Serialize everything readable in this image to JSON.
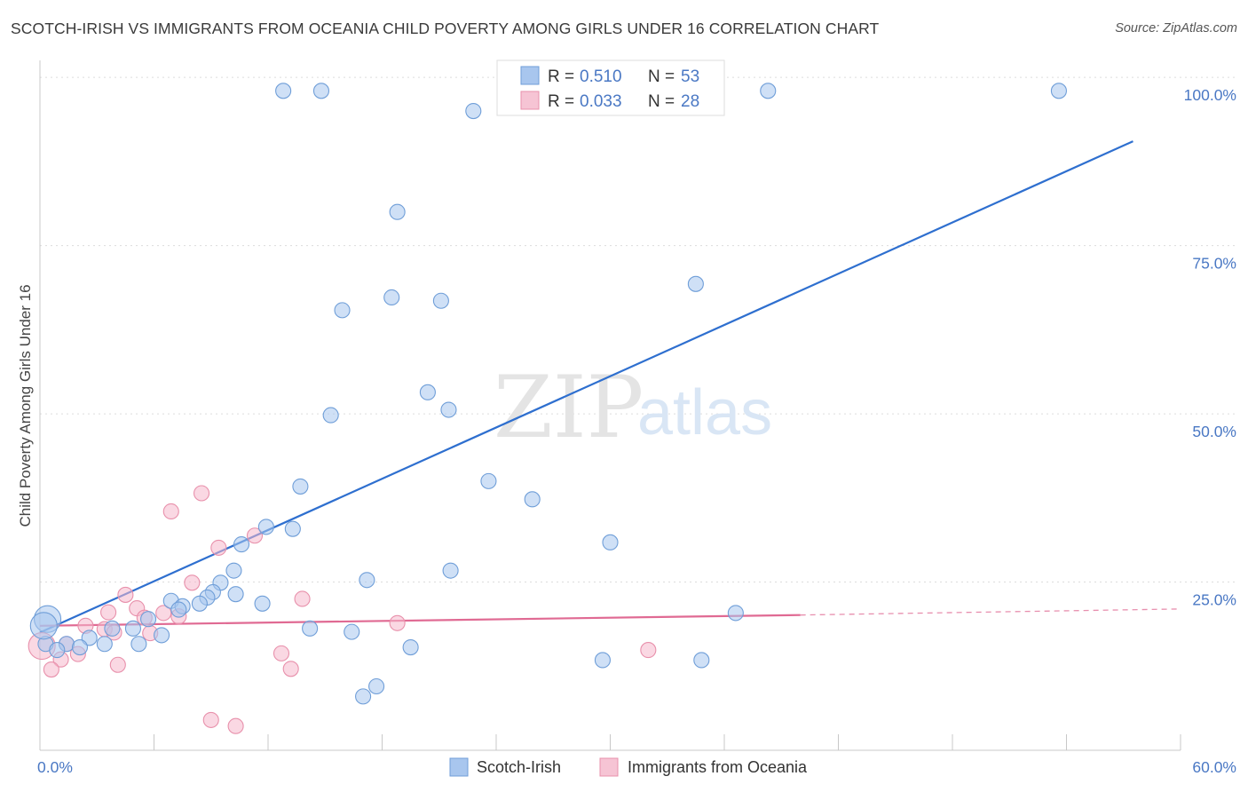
{
  "title": "SCOTCH-IRISH VS IMMIGRANTS FROM OCEANIA CHILD POVERTY AMONG GIRLS UNDER 16 CORRELATION CHART",
  "source": "Source: ZipAtlas.com",
  "watermark": {
    "zip": "ZIP",
    "atlas": "atlas"
  },
  "colors": {
    "blue_fill": "#a8c6ee",
    "blue_stroke": "#6f9ed8",
    "blue_line": "#2e6fcf",
    "pink_fill": "#f6b8cc",
    "pink_stroke": "#e890ab",
    "pink_line": "#e06a93",
    "grid": "#dcdcdc",
    "tick_label": "#4a78c4"
  },
  "legend": {
    "rows": [
      {
        "r_label": "R =",
        "r_value": "0.510",
        "n_label": "N =",
        "n_value": "53"
      },
      {
        "r_label": "R =",
        "r_value": "0.033",
        "n_label": "N =",
        "n_value": "28"
      }
    ]
  },
  "chart_data": {
    "type": "scatter",
    "title": "SCOTCH-IRISH VS IMMIGRANTS FROM OCEANIA CHILD POVERTY AMONG GIRLS UNDER 16 CORRELATION CHART",
    "xlabel": "",
    "ylabel": "Child Poverty Among Girls Under 16",
    "xlim": [
      0,
      60
    ],
    "ylim": [
      0,
      102
    ],
    "x_tick_labels": [
      {
        "value": 0,
        "label": "0.0%"
      },
      {
        "value": 60,
        "label": "60.0%"
      }
    ],
    "y_tick_labels": [
      {
        "value": 25,
        "label": "25.0%"
      },
      {
        "value": 50,
        "label": "50.0%"
      },
      {
        "value": 75,
        "label": "75.0%"
      },
      {
        "value": 100,
        "label": "100.0%"
      }
    ],
    "grid": true,
    "legend_position": "top-center",
    "series": [
      {
        "name": "Scotch-Irish",
        "color": "#a8c6ee",
        "r": 0.51,
        "n": 53,
        "trend": {
          "x0": 0,
          "y0": 17.5,
          "x1": 57.5,
          "y1": 90.5
        },
        "points": [
          [
            12.8,
            98.0
          ],
          [
            14.8,
            98.0
          ],
          [
            22.8,
            95.0
          ],
          [
            38.3,
            98.0
          ],
          [
            53.6,
            98.0
          ],
          [
            18.8,
            80.0
          ],
          [
            34.5,
            69.3
          ],
          [
            15.9,
            65.4
          ],
          [
            18.5,
            67.3
          ],
          [
            21.1,
            66.8
          ],
          [
            20.4,
            53.2
          ],
          [
            15.3,
            49.8
          ],
          [
            21.5,
            50.6
          ],
          [
            23.6,
            40.0
          ],
          [
            13.7,
            39.2
          ],
          [
            25.9,
            37.3
          ],
          [
            30.0,
            30.9
          ],
          [
            11.9,
            33.2
          ],
          [
            13.3,
            32.9
          ],
          [
            10.6,
            30.6
          ],
          [
            10.2,
            26.7
          ],
          [
            17.2,
            25.3
          ],
          [
            21.6,
            26.7
          ],
          [
            9.5,
            24.9
          ],
          [
            9.1,
            23.5
          ],
          [
            10.3,
            23.2
          ],
          [
            8.8,
            22.7
          ],
          [
            6.9,
            22.2
          ],
          [
            8.4,
            21.8
          ],
          [
            11.7,
            21.8
          ],
          [
            7.5,
            21.4
          ],
          [
            7.3,
            20.9
          ],
          [
            5.7,
            19.5
          ],
          [
            3.8,
            18.1
          ],
          [
            4.9,
            18.1
          ],
          [
            14.2,
            18.1
          ],
          [
            16.4,
            17.6
          ],
          [
            6.4,
            17.1
          ],
          [
            2.6,
            16.7
          ],
          [
            5.2,
            15.8
          ],
          [
            1.4,
            15.8
          ],
          [
            2.1,
            15.3
          ],
          [
            3.4,
            15.8
          ],
          [
            0.3,
            15.8
          ],
          [
            19.5,
            15.3
          ],
          [
            29.6,
            13.4
          ],
          [
            34.8,
            13.4
          ],
          [
            36.6,
            20.4
          ],
          [
            17.7,
            9.5
          ],
          [
            17.0,
            8.0
          ],
          [
            0.9,
            14.9
          ],
          [
            0.4,
            19.5
          ],
          [
            0.2,
            18.5
          ]
        ]
      },
      {
        "name": "Immigrants from Oceania",
        "color": "#f6b8cc",
        "r": 0.033,
        "n": 28,
        "trend": {
          "x0": 0,
          "y0": 18.5,
          "x1": 40,
          "y1": 20.1
        },
        "trend_dashed": {
          "x0": 40,
          "y0": 20.1,
          "x1": 60,
          "y1": 21.0
        },
        "points": [
          [
            8.5,
            38.2
          ],
          [
            6.9,
            35.5
          ],
          [
            9.4,
            30.1
          ],
          [
            11.3,
            31.9
          ],
          [
            4.5,
            23.1
          ],
          [
            8.0,
            24.9
          ],
          [
            3.6,
            20.5
          ],
          [
            5.1,
            21.1
          ],
          [
            6.5,
            20.4
          ],
          [
            7.3,
            19.9
          ],
          [
            5.5,
            19.7
          ],
          [
            2.4,
            18.5
          ],
          [
            3.4,
            18.0
          ],
          [
            13.8,
            22.5
          ],
          [
            18.8,
            18.9
          ],
          [
            3.9,
            17.5
          ],
          [
            5.8,
            17.4
          ],
          [
            1.4,
            15.8
          ],
          [
            2.0,
            14.3
          ],
          [
            1.1,
            13.5
          ],
          [
            4.1,
            12.7
          ],
          [
            12.7,
            14.4
          ],
          [
            13.2,
            12.1
          ],
          [
            32.0,
            14.9
          ],
          [
            0.6,
            12.0
          ],
          [
            9.0,
            4.5
          ],
          [
            10.3,
            3.6
          ],
          [
            0.1,
            15.5
          ]
        ]
      }
    ]
  },
  "bottom_legend": {
    "items": [
      "Scotch-Irish",
      "Immigrants from Oceania"
    ]
  }
}
